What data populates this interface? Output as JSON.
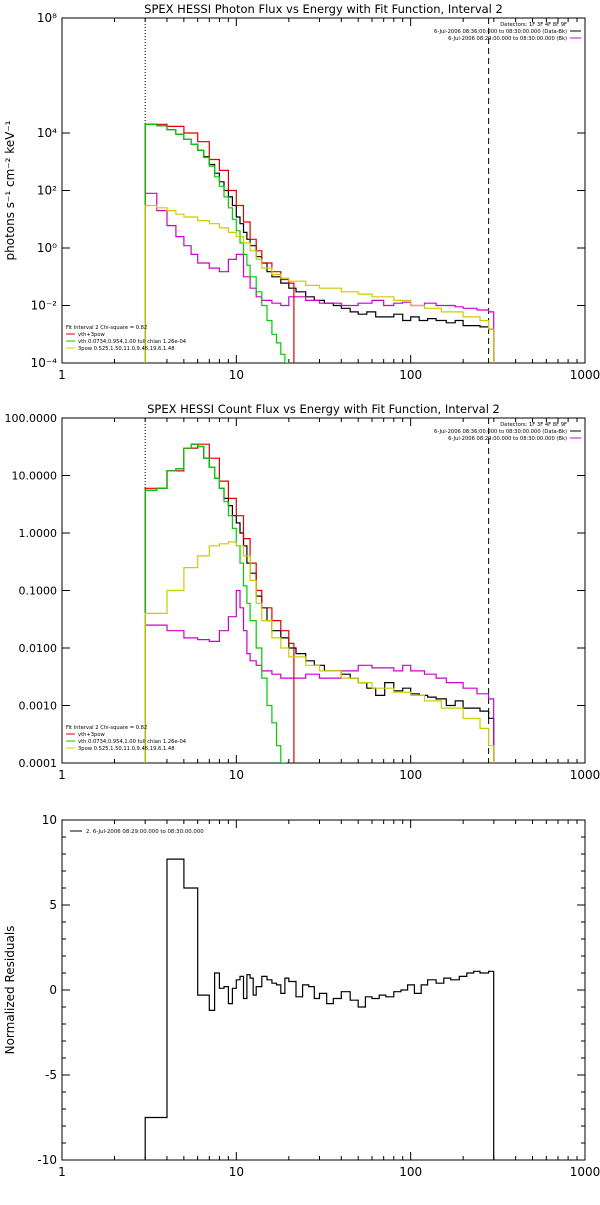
{
  "chart_data": [
    {
      "type": "line",
      "title": "SPEX HESSI Photon Flux vs Energy with Fit Function, Interval 2",
      "xlabel": "",
      "ylabel": "photons s⁻¹ cm⁻² keV⁻¹",
      "xscale": "log",
      "yscale": "log",
      "xlim": [
        1,
        1000
      ],
      "ylim": [
        0.0001,
        100000000
      ],
      "xticks": [
        1,
        10,
        100,
        1000
      ],
      "xtick_labels": [
        "1",
        "10",
        "100",
        "1000"
      ],
      "yticks": [
        0.0001,
        0.01,
        1,
        100,
        10000,
        100000000
      ],
      "ytick_labels": [
        "10⁻⁴",
        "10⁻²",
        "10⁰",
        "10²",
        "10⁴",
        "10⁸"
      ],
      "vlines": [
        3,
        280
      ],
      "legend_header": [
        "Detectors: 1F 3F 4F 8F 9F",
        "6-Jul-2006 08:36:00.000 to 08:30:00.000 (Data-Bk)",
        "6-Jul-2006 08:29:00.000 to 08:30:00.000 (Bk)"
      ],
      "fit_labels": [
        "Fit Interval 2   Chi-square = 0.82",
        "vth+3pow",
        "vth 0.0734,0.954,1.00  full chian 1.26e-04",
        "3pow 0.525,1.50,11.0,9.46,19.6,1.48"
      ],
      "series": [
        {
          "name": "Data-Bk",
          "color": "#000000",
          "x": [
            3,
            3.5,
            4,
            4.5,
            5,
            5.5,
            6,
            6.5,
            7,
            7.5,
            8,
            8.5,
            9,
            9.5,
            10,
            10.5,
            11,
            11.5,
            12,
            13,
            14,
            15,
            16,
            18,
            20,
            22,
            25,
            28,
            32,
            36,
            40,
            45,
            50,
            56,
            63,
            71,
            80,
            90,
            100,
            112,
            125,
            140,
            160,
            180,
            200,
            225,
            250,
            280
          ],
          "y": [
            20000,
            18000,
            13000,
            9000,
            6000,
            4000,
            2500,
            1500,
            800,
            400,
            200,
            100,
            60,
            30,
            12,
            7,
            3.5,
            2,
            1.2,
            0.5,
            0.3,
            0.15,
            0.1,
            0.06,
            0.04,
            0.03,
            0.02,
            0.015,
            0.012,
            0.01,
            0.008,
            0.006,
            0.005,
            0.006,
            0.004,
            0.004,
            0.005,
            0.003,
            0.004,
            0.003,
            0.0035,
            0.003,
            0.0025,
            0.003,
            0.002,
            0.002,
            0.0018,
            0.0015
          ]
        },
        {
          "name": "Bk",
          "color": "#cc00cc",
          "x": [
            3,
            3.5,
            4,
            4.5,
            5,
            5.5,
            6,
            7,
            8,
            9,
            10,
            11,
            12,
            13,
            14,
            16,
            18,
            20,
            25,
            30,
            40,
            50,
            60,
            70,
            80,
            90,
            100,
            120,
            140,
            160,
            180,
            200,
            240,
            280
          ],
          "y": [
            80,
            20,
            6,
            2.5,
            1.2,
            0.6,
            0.3,
            0.2,
            0.15,
            0.4,
            0.6,
            0.1,
            0.04,
            0.02,
            0.015,
            0.012,
            0.01,
            0.02,
            0.015,
            0.012,
            0.01,
            0.012,
            0.015,
            0.01,
            0.012,
            0.013,
            0.01,
            0.012,
            0.01,
            0.01,
            0.009,
            0.008,
            0.007,
            0.006
          ]
        },
        {
          "name": "vth+3pow",
          "color": "#dd0000",
          "x": [
            3,
            4,
            5,
            6,
            7,
            8,
            9,
            10,
            11,
            12,
            13,
            14,
            16,
            18,
            20
          ],
          "y": [
            20000,
            17000,
            10000,
            5000,
            1200,
            500,
            100,
            30,
            8,
            2,
            0.8,
            0.3,
            0.15,
            0.08,
            0.06
          ]
        },
        {
          "name": "vth",
          "color": "#00cc00",
          "x": [
            3,
            3.5,
            4,
            4.5,
            5,
            5.5,
            6,
            6.5,
            7,
            7.5,
            8,
            8.5,
            9,
            9.5,
            10,
            10.5,
            11,
            11.5,
            12,
            13,
            14,
            15,
            16,
            17,
            18,
            19,
            20
          ],
          "y": [
            20000,
            18000,
            13000,
            9000,
            6000,
            4000,
            2500,
            1400,
            700,
            300,
            140,
            60,
            25,
            10,
            4,
            1.5,
            0.6,
            0.25,
            0.1,
            0.03,
            0.01,
            0.003,
            0.001,
            0.0005,
            0.0002,
            0.0001,
            6e-05
          ]
        },
        {
          "name": "3pow",
          "color": "#cccc00",
          "x": [
            3,
            3.5,
            4,
            4.5,
            5,
            6,
            7,
            8,
            9,
            10,
            11,
            12,
            13,
            14,
            16,
            18,
            20,
            25,
            30,
            40,
            50,
            60,
            80,
            100,
            120,
            150,
            200,
            250,
            280
          ],
          "y": [
            30,
            25,
            20,
            15,
            12,
            9,
            7,
            5,
            3.5,
            2.5,
            1.5,
            0.8,
            0.4,
            0.2,
            0.12,
            0.09,
            0.07,
            0.05,
            0.04,
            0.03,
            0.025,
            0.02,
            0.015,
            0.01,
            0.008,
            0.006,
            0.004,
            0.003,
            0.0015
          ]
        }
      ]
    },
    {
      "type": "line",
      "title": "SPEX HESSI Count Flux vs Energy with Fit Function, Interval 2",
      "xlabel": "",
      "ylabel": "",
      "xscale": "log",
      "yscale": "log",
      "xlim": [
        1,
        1000
      ],
      "ylim": [
        0.0001,
        100
      ],
      "xticks": [
        1,
        10,
        100,
        1000
      ],
      "xtick_labels": [
        "1",
        "10",
        "100",
        "1000"
      ],
      "yticks": [
        0.0001,
        0.001,
        0.01,
        0.1,
        1,
        10,
        100
      ],
      "ytick_labels": [
        "0.0001",
        "0.0010",
        "0.0100",
        "0.1000",
        "1.0000",
        "10.0000",
        "100.0000"
      ],
      "vlines": [
        3,
        280
      ],
      "legend_header": [
        "Detectors: 1F 3F 4F 8F 9F",
        "6-Jul-2006 08:36:00.000 to 08:30:00.000 (Data-Bk)",
        "6-Jul-2006 08:29:00.000 to 08:30:00.000 (Bk)"
      ],
      "fit_labels": [
        "Fit Interval 2   Chi-square = 0.82",
        "vth+3pow",
        "vth 0.0734,0.954,1.00  full chian 1.26e-04",
        "3pow 0.525,1.50,11.0,9.46,19.6,1.48"
      ],
      "series": [
        {
          "name": "Data-Bk",
          "color": "#000000",
          "x": [
            3,
            3.5,
            4,
            4.5,
            5,
            5.5,
            6,
            6.5,
            7,
            7.5,
            8,
            8.5,
            9,
            9.5,
            10,
            10.5,
            11,
            11.5,
            12,
            13,
            14,
            15,
            16,
            18,
            20,
            22,
            25,
            28,
            32,
            36,
            40,
            45,
            50,
            56,
            63,
            71,
            80,
            90,
            100,
            112,
            125,
            140,
            160,
            180,
            200,
            225,
            250,
            280
          ],
          "y": [
            5.5,
            6,
            12,
            13,
            30,
            35,
            32,
            20,
            14,
            9,
            6,
            4,
            3,
            2,
            1.5,
            1,
            0.6,
            0.3,
            0.2,
            0.08,
            0.05,
            0.03,
            0.02,
            0.015,
            0.01,
            0.008,
            0.006,
            0.005,
            0.004,
            0.004,
            0.0035,
            0.003,
            0.0025,
            0.002,
            0.0015,
            0.0025,
            0.0018,
            0.002,
            0.0016,
            0.0015,
            0.0014,
            0.0013,
            0.001,
            0.0012,
            0.0009,
            0.0009,
            0.0008,
            0.0006
          ]
        },
        {
          "name": "Bk",
          "color": "#cc00cc",
          "x": [
            3,
            4,
            5,
            6,
            7,
            8,
            9,
            10,
            10.5,
            11,
            11.5,
            12,
            13,
            14,
            16,
            18,
            20,
            25,
            30,
            40,
            50,
            60,
            70,
            80,
            90,
            100,
            120,
            140,
            160,
            180,
            200,
            240,
            280
          ],
          "y": [
            0.025,
            0.02,
            0.015,
            0.014,
            0.013,
            0.02,
            0.035,
            0.1,
            0.05,
            0.02,
            0.008,
            0.006,
            0.005,
            0.004,
            0.0035,
            0.003,
            0.003,
            0.0035,
            0.003,
            0.004,
            0.005,
            0.0045,
            0.0045,
            0.004,
            0.005,
            0.004,
            0.0035,
            0.003,
            0.0025,
            0.0025,
            0.002,
            0.0016,
            0.0013
          ]
        },
        {
          "name": "vth+3pow",
          "color": "#dd0000",
          "x": [
            3,
            4,
            5,
            6,
            7,
            8,
            9,
            10,
            11,
            12,
            13,
            14,
            16,
            18,
            20
          ],
          "y": [
            6,
            12,
            30,
            35,
            20,
            8,
            4,
            2,
            0.8,
            0.3,
            0.1,
            0.05,
            0.03,
            0.02,
            0.012
          ]
        },
        {
          "name": "vth",
          "color": "#00cc00",
          "x": [
            3,
            3.5,
            4,
            4.5,
            5,
            5.5,
            6,
            6.5,
            7,
            7.5,
            8,
            8.5,
            9,
            9.5,
            10,
            10.5,
            11,
            11.5,
            12,
            13,
            14,
            15,
            16,
            17,
            18
          ],
          "y": [
            5.5,
            6,
            12,
            13,
            30,
            35,
            32,
            20,
            14,
            9,
            6,
            3.5,
            2,
            1.2,
            0.6,
            0.3,
            0.12,
            0.06,
            0.03,
            0.01,
            0.003,
            0.001,
            0.0005,
            0.0002,
            0.0001
          ]
        },
        {
          "name": "3pow",
          "color": "#cccc00",
          "x": [
            3,
            4,
            5,
            6,
            7,
            8,
            9,
            10,
            11,
            12,
            13,
            14,
            16,
            18,
            20,
            25,
            30,
            40,
            50,
            60,
            80,
            100,
            120,
            150,
            200,
            250,
            280
          ],
          "y": [
            0.04,
            0.1,
            0.25,
            0.4,
            0.6,
            0.65,
            0.7,
            0.6,
            0.4,
            0.15,
            0.06,
            0.03,
            0.015,
            0.01,
            0.007,
            0.005,
            0.004,
            0.003,
            0.0025,
            0.002,
            0.0017,
            0.0015,
            0.0012,
            0.0009,
            0.0006,
            0.0004,
            0.0002
          ]
        }
      ]
    },
    {
      "type": "line",
      "title": "",
      "xlabel": "",
      "ylabel": "Normalized Residuals",
      "xscale": "log",
      "yscale": "linear",
      "xlim": [
        1,
        1000
      ],
      "ylim": [
        -10,
        10
      ],
      "xticks": [
        1,
        10,
        100,
        1000
      ],
      "xtick_labels": [
        "1",
        "10",
        "100",
        "1000"
      ],
      "yticks": [
        -10,
        -5,
        0,
        5,
        10
      ],
      "ytick_labels": [
        "-10",
        "-5",
        "0",
        "5",
        "10"
      ],
      "legend": "2.  6-Jul-2006 08:29:00.000 to 08:30:00.000",
      "series": [
        {
          "name": "",
          "color": "#000000",
          "x": [
            3,
            4,
            5,
            6,
            7,
            7.5,
            8,
            8.5,
            9,
            9.5,
            10,
            10.5,
            11,
            11.5,
            12,
            12.5,
            13,
            14,
            15,
            16,
            17,
            18,
            19,
            20,
            22,
            24,
            26,
            28,
            30,
            33,
            36,
            40,
            45,
            50,
            55,
            60,
            66,
            72,
            80,
            88,
            96,
            105,
            115,
            125,
            140,
            155,
            170,
            190,
            210,
            230,
            250,
            280
          ],
          "y": [
            -7.5,
            7.7,
            6,
            -0.3,
            -1.2,
            1,
            0.1,
            0.2,
            -0.8,
            0.1,
            0.6,
            0.8,
            -0.5,
            0.9,
            0.7,
            -0.3,
            0.2,
            0.8,
            0.6,
            0.4,
            0.3,
            -0.2,
            0.7,
            0.5,
            -0.4,
            0.3,
            0.2,
            -0.5,
            -0.2,
            -0.8,
            -0.5,
            -0.1,
            -0.6,
            -1,
            -0.4,
            -0.5,
            -0.3,
            -0.4,
            -0.1,
            0,
            0.3,
            -0.2,
            0.3,
            0.6,
            0.4,
            0.7,
            0.6,
            0.8,
            1,
            1.1,
            1,
            1.1
          ]
        }
      ]
    }
  ]
}
